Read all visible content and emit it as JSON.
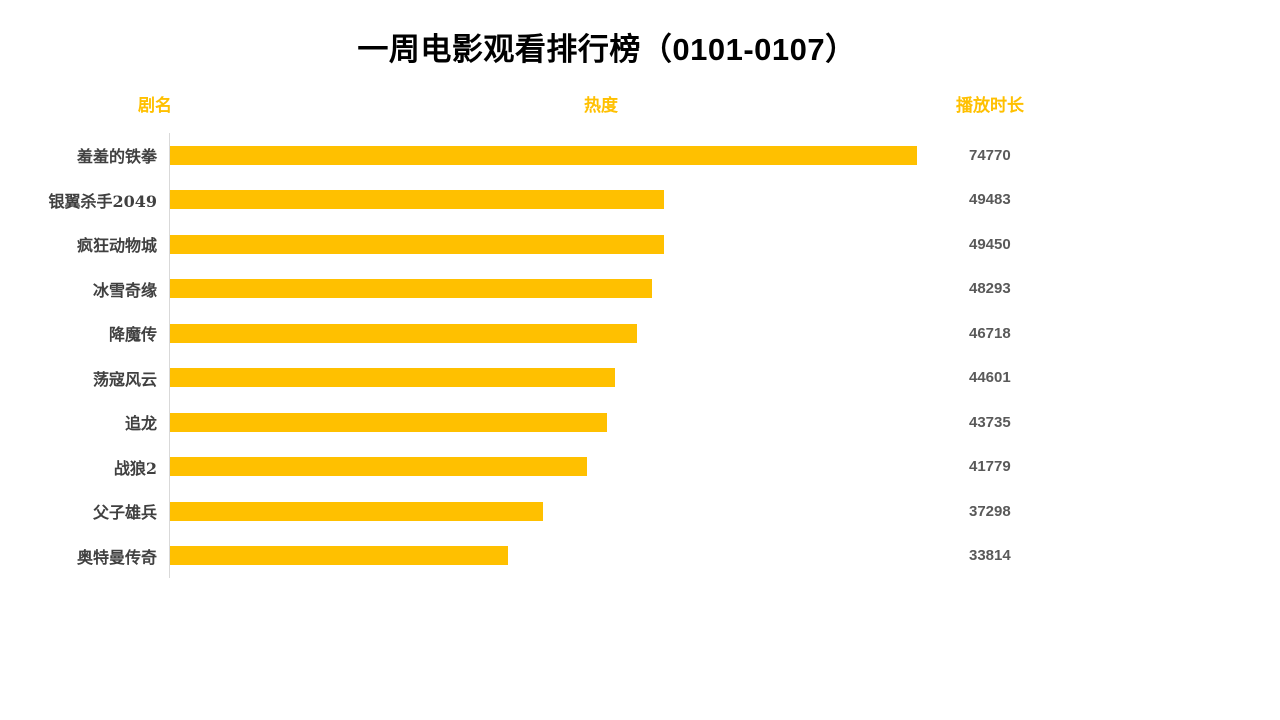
{
  "title": "一周电影观看排行榜（0101-0107）",
  "columns": {
    "name": "剧名",
    "heat": "热度",
    "duration": "播放时长"
  },
  "chart_data": {
    "type": "bar",
    "orientation": "horizontal",
    "title": "一周电影观看排行榜（0101-0107）",
    "category_header": "剧名",
    "bar_header": "热度",
    "value_header": "播放时长",
    "categories": [
      "羞羞的铁拳",
      "银翼杀手2049",
      "疯狂动物城",
      "冰雪奇缘",
      "降魔传",
      "荡寇风云",
      "追龙",
      "战狼2",
      "父子雄兵",
      "奥特曼传奇"
    ],
    "values": [
      74770,
      49483,
      49450,
      48293,
      46718,
      44601,
      43735,
      41779,
      37298,
      33814
    ],
    "xlim": [
      0,
      80000
    ],
    "grid": false,
    "legend": "none",
    "sort": "descending"
  },
  "colors": {
    "bar": "#FFC000",
    "header_text": "#FFC000",
    "category_text": "#404040",
    "value_text": "#595959",
    "axis_line": "#D9D9D9",
    "title_text": "#000000",
    "background": "#FFFFFF"
  }
}
